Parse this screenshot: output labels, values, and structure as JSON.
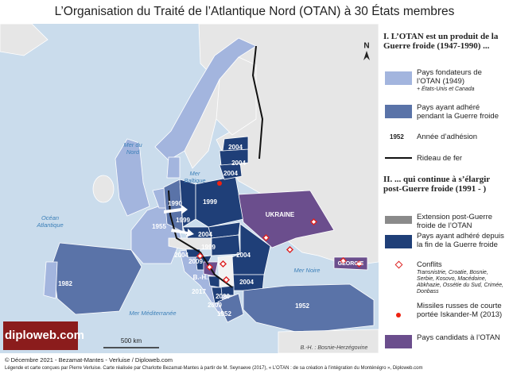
{
  "title": "L’Organisation du Traité de l’Atlantique Nord (OTAN) à 30 États membres",
  "map_labels": {
    "years": [
      "2004",
      "2004",
      "2004",
      "1990",
      "1999",
      "1999",
      "2004",
      "1999",
      "2004",
      "2009",
      "2004",
      "2004",
      "2017",
      "2020",
      "2009",
      "1952",
      "1952",
      "1955",
      "1982"
    ],
    "countries": [
      "UKRAINE",
      "GÉORGIE",
      "B.-H."
    ],
    "seas": [
      "Mer du Nord",
      "Mer Baltique",
      "Océan Atlantique",
      "Mer Noire",
      "Mer Méditerranée"
    ],
    "north": "N",
    "scale": "500 km",
    "abbreviation": "B.-H. : Bosnie-Herzégovine",
    "logo": "diploweb.com"
  },
  "legend": {
    "section1": {
      "title": "I. L’OTAN est un produit de la Guerre froide (1947-1990) ...",
      "founders": "Pays fondateurs de l’OTAN (1949)",
      "founders_note": "+ États-Unis et Canada",
      "cold_war": "Pays ayant adhéré pendant la Guerre froide",
      "year_sample": "1952",
      "year_label": "Année d’adhésion",
      "iron_curtain": "Rideau de fer"
    },
    "section2": {
      "title": "II. ... qui continue à s’élargir post-Guerre froide (1991 - )",
      "extension": "Extension post-Guerre froide de l’OTAN",
      "post_cold_war": "Pays ayant adhéré depuis la fin de la Guerre froide",
      "conflicts": "Conflits",
      "conflicts_note": "Transnistrie, Croatie, Bosnie, Serbie, Kosovo, Macédoine, Abkhazie, Ossétie du Sud, Crimée, Donbass",
      "missiles": "Missiles russes de courte portée Iskander-M (2013)",
      "candidates": "Pays candidats à l’OTAN"
    }
  },
  "footer": [
    "© Décembre 2021 - Bezamat-Mantes - Verluise / Diploweb.com",
    "Légende et carte conçues par Pierre Verluise. Carte réalisée par Charlotte Bezamat-Mantes à partir de M. Seynaeve (2017), « L’OTAN : de sa création à l’intégration du Monténégro », Diploweb.com"
  ]
}
